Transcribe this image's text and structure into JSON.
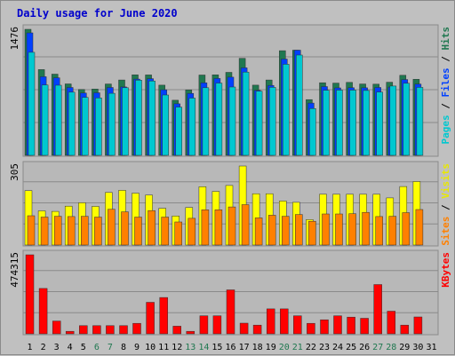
{
  "title": "Daily usage for June 2020",
  "chart_data": [
    {
      "type": "bar",
      "panel": "top",
      "y_max_label": "1476",
      "right_label_parts": [
        {
          "text": "Pages",
          "color": "#00c8d0"
        },
        {
          "text": " / ",
          "color": "#000000"
        },
        {
          "text": "Files",
          "color": "#0040ff"
        },
        {
          "text": " / ",
          "color": "#000000"
        },
        {
          "text": "Hits",
          "color": "#207850"
        }
      ],
      "ylim": [
        0,
        1476
      ],
      "categories": [
        "1",
        "2",
        "3",
        "4",
        "5",
        "6",
        "7",
        "8",
        "9",
        "10",
        "11",
        "12",
        "13",
        "14",
        "15",
        "16",
        "17",
        "18",
        "19",
        "20",
        "21",
        "22",
        "23",
        "24",
        "25",
        "26",
        "27",
        "28",
        "29",
        "30"
      ],
      "series": [
        {
          "name": "Hits",
          "color": "#207850",
          "values": [
            1476,
            1004,
            951,
            837,
            771,
            776,
            836,
            883,
            943,
            942,
            822,
            646,
            766,
            941,
            943,
            972,
            1136,
            822,
            882,
            1226,
            1232,
            653,
            850,
            846,
            854,
            836,
            834,
            857,
            938,
            891
          ]
        },
        {
          "name": "Files",
          "color": "#0040ff",
          "values": [
            1434,
            921,
            908,
            795,
            730,
            733,
            795,
            801,
            893,
            898,
            768,
            604,
            726,
            849,
            900,
            916,
            1025,
            761,
            819,
            1128,
            1232,
            612,
            806,
            790,
            792,
            791,
            795,
            799,
            888,
            835
          ]
        },
        {
          "name": "Pages",
          "color": "#00c8d0",
          "values": [
            1207,
            824,
            821,
            740,
            679,
            673,
            727,
            792,
            880,
            871,
            707,
            565,
            670,
            792,
            846,
            800,
            975,
            752,
            796,
            1066,
            1175,
            548,
            762,
            764,
            764,
            760,
            741,
            812,
            844,
            796
          ]
        }
      ]
    },
    {
      "type": "bar",
      "panel": "middle",
      "y_max_label": "305",
      "right_label_parts": [
        {
          "text": "Sites",
          "color": "#ff8000"
        },
        {
          "text": " / ",
          "color": "#000000"
        },
        {
          "text": "Visits",
          "color": "#e8e800"
        }
      ],
      "ylim": [
        0,
        305
      ],
      "categories": [
        "1",
        "2",
        "3",
        "4",
        "5",
        "6",
        "7",
        "8",
        "9",
        "10",
        "11",
        "12",
        "13",
        "14",
        "15",
        "16",
        "17",
        "18",
        "19",
        "20",
        "21",
        "22",
        "23",
        "24",
        "25",
        "26",
        "27",
        "28",
        "29",
        "30"
      ],
      "series": [
        {
          "name": "Visits",
          "color": "#ffff00",
          "values": [
            210,
            132,
            130,
            150,
            163,
            149,
            203,
            211,
            200,
            193,
            142,
            112,
            145,
            225,
            207,
            230,
            305,
            198,
            198,
            170,
            165,
            98,
            196,
            196,
            196,
            196,
            196,
            182,
            226,
            245
          ]
        },
        {
          "name": "Sites",
          "color": "#ff8000",
          "values": [
            113,
            108,
            111,
            110,
            111,
            108,
            138,
            128,
            108,
            133,
            108,
            89,
            103,
            136,
            136,
            147,
            156,
            105,
            115,
            111,
            118,
            92,
            120,
            120,
            121,
            126,
            110,
            111,
            125,
            137
          ]
        }
      ]
    },
    {
      "type": "bar",
      "panel": "bottom",
      "y_max_label": "474315",
      "right_label_parts": [
        {
          "text": "KBytes",
          "color": "#ff0000"
        }
      ],
      "ylim": [
        0,
        474315
      ],
      "categories": [
        "1",
        "2",
        "3",
        "4",
        "5",
        "6",
        "7",
        "8",
        "9",
        "10",
        "11",
        "12",
        "13",
        "14",
        "15",
        "16",
        "17",
        "18",
        "19",
        "20",
        "21",
        "22",
        "23",
        "24",
        "25",
        "26",
        "27",
        "28",
        "29",
        "30"
      ],
      "series": [
        {
          "name": "KBytes",
          "color": "#ff0000",
          "values": [
            474315,
            272340,
            77000,
            15000,
            49000,
            49000,
            49000,
            49000,
            63000,
            189000,
            218000,
            46000,
            15000,
            108000,
            108000,
            264000,
            64000,
            52000,
            150000,
            150000,
            108000,
            63000,
            84000,
            108000,
            100000,
            93000,
            296000,
            136000,
            52000,
            101000
          ]
        }
      ]
    }
  ],
  "x_labels": {
    "days": [
      "1",
      "2",
      "3",
      "4",
      "5",
      "6",
      "7",
      "8",
      "9",
      "10",
      "11",
      "12",
      "13",
      "14",
      "15",
      "16",
      "17",
      "18",
      "19",
      "20",
      "21",
      "22",
      "23",
      "24",
      "25",
      "26",
      "27",
      "28",
      "29",
      "30",
      "31"
    ],
    "weekend_days": [
      "6",
      "7",
      "13",
      "14",
      "20",
      "21",
      "27",
      "28"
    ],
    "weekday_color": "#000000",
    "weekend_color": "#207850"
  }
}
